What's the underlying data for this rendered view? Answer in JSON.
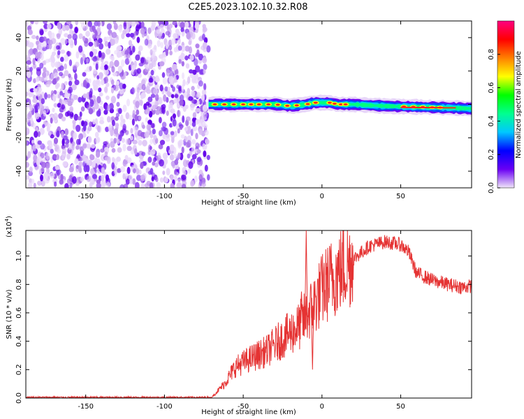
{
  "figure": {
    "title": "C2E5.2023.102.10.32.R08"
  },
  "chart_data": [
    {
      "type": "heatmap",
      "title": "",
      "xlabel": "Height of straight line (km)",
      "ylabel": "Frequency (Hz)",
      "xlim": [
        -188,
        95
      ],
      "ylim": [
        -50,
        50
      ],
      "xticks": [
        -150,
        -100,
        -50,
        0,
        50
      ],
      "yticks": [
        -40,
        -20,
        0,
        20,
        40
      ],
      "noise_region_x": [
        -188,
        -72
      ],
      "signal_track": {
        "x": [
          -72,
          -60,
          -45,
          -30,
          -20,
          -10,
          -5,
          0,
          5,
          10,
          20,
          40,
          60,
          80,
          95
        ],
        "freq": [
          0,
          0,
          0,
          0,
          -1,
          0,
          1,
          1,
          1,
          0,
          0,
          -1,
          -1.5,
          -2,
          -2.5
        ]
      },
      "colorbar": {
        "label": "Normalized spectral amplitude",
        "ticks": [
          "0.0",
          "0.2",
          "0.4",
          "0.6",
          "0.8"
        ],
        "range": [
          0,
          1
        ],
        "colors": [
          "#f0e6f8",
          "#6a00f4",
          "#0000ff",
          "#00c8ff",
          "#00ff90",
          "#00ff00",
          "#ffff00",
          "#ff8000",
          "#ff0000",
          "#ff0080"
        ]
      },
      "grid": false
    },
    {
      "type": "line",
      "title": "",
      "xlabel": "Height of straight line (km)",
      "ylabel": "SNR (10 * v/v)",
      "y_multiplier": "(x10",
      "y_multiplier_exp": "4",
      "xlim": [
        -188,
        95
      ],
      "ylim": [
        0,
        1.18
      ],
      "xticks": [
        -150,
        -100,
        -50,
        0,
        50
      ],
      "yticks": [
        "0.0",
        "0.2",
        "0.4",
        "0.6",
        "0.8",
        "1.0"
      ],
      "color": "#e53333",
      "envelope": {
        "x": [
          -188,
          -70,
          -62,
          -55,
          -45,
          -35,
          -25,
          -15,
          -10,
          -5,
          0,
          5,
          10,
          20,
          30,
          40,
          50,
          55,
          60,
          70,
          80,
          90,
          95
        ],
        "y": [
          0.005,
          0.005,
          0.1,
          0.22,
          0.28,
          0.33,
          0.42,
          0.5,
          0.57,
          0.66,
          0.76,
          0.83,
          0.88,
          0.98,
          1.07,
          1.1,
          1.08,
          1.03,
          0.88,
          0.83,
          0.8,
          0.78,
          0.79
        ]
      },
      "peaks": [
        {
          "x": -10,
          "y": 1.18
        },
        {
          "x": -13,
          "y": 0.75
        },
        {
          "x": -6,
          "y": 0.2
        }
      ],
      "grid": false
    }
  ]
}
